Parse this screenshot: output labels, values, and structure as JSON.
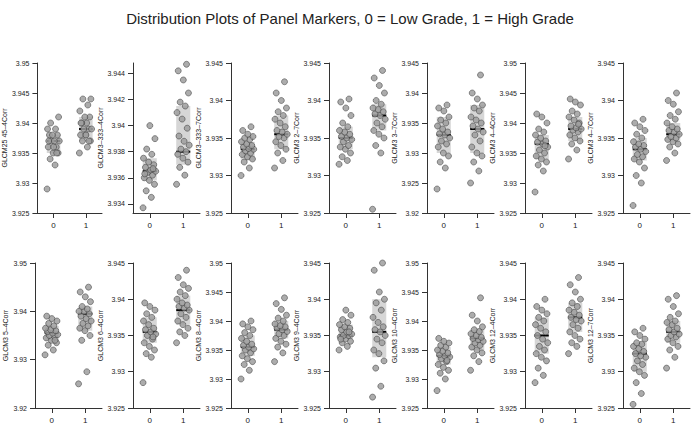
{
  "title": "Distribution Plots of Panel Markers, 0 = Low Grade, 1 = High Grade",
  "chart_data": [
    {
      "type": "strip",
      "y_label": "GLCM25 45–4Corr",
      "categories": [
        "0",
        "1"
      ],
      "color": "#9e9e9e",
      "ylim": [
        3.925,
        3.95
      ],
      "yticks": [
        3.925,
        3.93,
        3.935,
        3.94,
        3.945,
        3.95
      ],
      "median": [
        3.937,
        3.939
      ],
      "iqr": [
        [
          3.935,
          3.938
        ],
        [
          3.937,
          3.941
        ]
      ],
      "values": [
        [
          3.929,
          3.933,
          3.934,
          3.935,
          3.935,
          3.936,
          3.936,
          3.937,
          3.937,
          3.937,
          3.938,
          3.938,
          3.938,
          3.939,
          3.939,
          3.94,
          3.941,
          3.936,
          3.937,
          3.935
        ],
        [
          3.935,
          3.936,
          3.937,
          3.937,
          3.938,
          3.938,
          3.939,
          3.939,
          3.939,
          3.94,
          3.94,
          3.941,
          3.941,
          3.942,
          3.943,
          3.944,
          3.944,
          3.938,
          3.94,
          3.937
        ]
      ]
    },
    {
      "type": "strip",
      "y_label": "GLCM3–333–4Corr",
      "categories": [
        "0",
        "1"
      ],
      "color": "#9e9e9e",
      "ylim": [
        3.9333,
        3.9448
      ],
      "yticks": [
        3.934,
        3.936,
        3.938,
        3.94,
        3.942,
        3.944
      ],
      "median": [
        3.9365,
        3.938
      ],
      "iqr": [
        [
          3.9358,
          3.9375
        ],
        [
          3.937,
          3.9415
        ]
      ],
      "values": [
        [
          3.9337,
          3.9345,
          3.935,
          3.9355,
          3.9358,
          3.936,
          3.9362,
          3.9364,
          3.9365,
          3.9366,
          3.9368,
          3.937,
          3.9372,
          3.9375,
          3.9378,
          3.9382,
          3.939,
          3.94,
          3.9363,
          3.9367
        ],
        [
          3.9355,
          3.9362,
          3.9368,
          3.9372,
          3.9375,
          3.9378,
          3.938,
          3.9382,
          3.9385,
          3.9388,
          3.9392,
          3.9398,
          3.9405,
          3.941,
          3.9415,
          3.9418,
          3.9425,
          3.9435,
          3.9442,
          3.9447
        ]
      ]
    },
    {
      "type": "strip",
      "y_label": "GLCM3–333–7Corr",
      "categories": [
        "0",
        "1"
      ],
      "color": "#9e9e9e",
      "ylim": [
        3.925,
        3.945
      ],
      "yticks": [
        3.925,
        3.93,
        3.935,
        3.94,
        3.945
      ],
      "median": [
        3.9335,
        3.9355
      ],
      "iqr": [
        [
          3.932,
          3.9345
        ],
        [
          3.9335,
          3.938
        ]
      ],
      "values": [
        [
          3.93,
          3.931,
          3.9318,
          3.9322,
          3.9325,
          3.9328,
          3.933,
          3.9333,
          3.9335,
          3.9336,
          3.9338,
          3.934,
          3.9342,
          3.9345,
          3.9348,
          3.935,
          3.9352,
          3.9355,
          3.936,
          3.9365
        ],
        [
          3.931,
          3.932,
          3.933,
          3.9335,
          3.934,
          3.9345,
          3.935,
          3.9352,
          3.9355,
          3.9358,
          3.936,
          3.9365,
          3.937,
          3.9375,
          3.938,
          3.9385,
          3.939,
          3.94,
          3.941,
          3.9425
        ]
      ]
    },
    {
      "type": "strip",
      "y_label": "GLCM3 2–7Corr",
      "categories": [
        "0",
        "1"
      ],
      "color": "#9e9e9e",
      "ylim": [
        3.925,
        3.945
      ],
      "yticks": [
        3.925,
        3.93,
        3.935,
        3.94,
        3.945
      ],
      "median": [
        3.935,
        3.938
      ],
      "iqr": [
        [
          3.9335,
          3.9365
        ],
        [
          3.936,
          3.9395
        ]
      ],
      "values": [
        [
          3.9315,
          3.932,
          3.9325,
          3.933,
          3.9335,
          3.9338,
          3.934,
          3.9345,
          3.9348,
          3.935,
          3.9352,
          3.9355,
          3.9358,
          3.936,
          3.9365,
          3.937,
          3.938,
          3.939,
          3.9398,
          3.9402
        ],
        [
          3.9255,
          3.933,
          3.934,
          3.935,
          3.9355,
          3.936,
          3.9365,
          3.937,
          3.9375,
          3.938,
          3.9382,
          3.9385,
          3.9388,
          3.939,
          3.9395,
          3.94,
          3.941,
          3.942,
          3.943,
          3.944
        ]
      ]
    },
    {
      "type": "strip",
      "y_label": "GLCM3 3–7Corr",
      "categories": [
        "0",
        "1"
      ],
      "color": "#9e9e9e",
      "ylim": [
        3.92,
        3.945
      ],
      "yticks": [
        3.92,
        3.925,
        3.93,
        3.935,
        3.94,
        3.945
      ],
      "median": [
        3.933,
        3.934
      ],
      "iqr": [
        [
          3.93,
          3.936
        ],
        [
          3.93,
          3.938
        ]
      ],
      "values": [
        [
          3.924,
          3.9275,
          3.9285,
          3.9295,
          3.93,
          3.931,
          3.9315,
          3.932,
          3.9325,
          3.933,
          3.9332,
          3.9335,
          3.934,
          3.9345,
          3.935,
          3.9355,
          3.936,
          3.937,
          3.9375,
          3.938
        ],
        [
          3.925,
          3.927,
          3.9285,
          3.9295,
          3.93,
          3.931,
          3.932,
          3.933,
          3.9335,
          3.934,
          3.9345,
          3.935,
          3.9355,
          3.936,
          3.937,
          3.9375,
          3.938,
          3.939,
          3.94,
          3.943
        ]
      ]
    },
    {
      "type": "strip",
      "y_label": "GLCM3 4–4Corr",
      "categories": [
        "0",
        "1"
      ],
      "color": "#9e9e9e",
      "ylim": [
        3.925,
        3.95
      ],
      "yticks": [
        3.925,
        3.93,
        3.935,
        3.94,
        3.945,
        3.95
      ],
      "median": [
        3.9365,
        3.939
      ],
      "iqr": [
        [
          3.934,
          3.938
        ],
        [
          3.937,
          3.941
        ]
      ],
      "values": [
        [
          3.9285,
          3.932,
          3.933,
          3.9335,
          3.934,
          3.9345,
          3.935,
          3.9355,
          3.936,
          3.9365,
          3.9368,
          3.937,
          3.9375,
          3.938,
          3.9385,
          3.939,
          3.94,
          3.941,
          3.9415,
          3.9362
        ],
        [
          3.934,
          3.9355,
          3.9365,
          3.937,
          3.9375,
          3.938,
          3.9385,
          3.9388,
          3.939,
          3.9392,
          3.9395,
          3.94,
          3.9405,
          3.941,
          3.9415,
          3.942,
          3.943,
          3.9435,
          3.944,
          3.9398
        ]
      ]
    },
    {
      "type": "strip",
      "y_label": "GLCM3 4–7Corr",
      "categories": [
        "0",
        "1"
      ],
      "color": "#9e9e9e",
      "ylim": [
        3.925,
        3.945
      ],
      "yticks": [
        3.925,
        3.93,
        3.935,
        3.94,
        3.945
      ],
      "median": [
        3.9335,
        3.9355
      ],
      "iqr": [
        [
          3.932,
          3.935
        ],
        [
          3.9345,
          3.937
        ]
      ],
      "values": [
        [
          3.926,
          3.929,
          3.93,
          3.931,
          3.9318,
          3.9322,
          3.9325,
          3.9328,
          3.9332,
          3.9335,
          3.9338,
          3.934,
          3.9342,
          3.9345,
          3.935,
          3.9355,
          3.936,
          3.9365,
          3.937,
          3.9375
        ],
        [
          3.932,
          3.933,
          3.9338,
          3.9342,
          3.9345,
          3.9348,
          3.935,
          3.9352,
          3.9355,
          3.9358,
          3.936,
          3.9362,
          3.9365,
          3.937,
          3.9375,
          3.938,
          3.9385,
          3.9395,
          3.94,
          3.941
        ]
      ]
    },
    {
      "type": "strip",
      "y_label": "GLCM3 5–4Corr",
      "categories": [
        "0",
        "1"
      ],
      "color": "#9e9e9e",
      "ylim": [
        3.92,
        3.95
      ],
      "yticks": [
        3.92,
        3.93,
        3.94,
        3.95
      ],
      "median": [
        3.9355,
        3.9395
      ],
      "iqr": [
        [
          3.934,
          3.937
        ],
        [
          3.936,
          3.941
        ]
      ],
      "values": [
        [
          3.931,
          3.932,
          3.933,
          3.9335,
          3.934,
          3.9345,
          3.9348,
          3.935,
          3.9352,
          3.9355,
          3.9358,
          3.936,
          3.9362,
          3.9365,
          3.937,
          3.9375,
          3.938,
          3.9385,
          3.939,
          3.934
        ],
        [
          3.925,
          3.9275,
          3.934,
          3.935,
          3.936,
          3.9365,
          3.937,
          3.9375,
          3.938,
          3.9385,
          3.939,
          3.9395,
          3.94,
          3.94,
          3.9405,
          3.941,
          3.942,
          3.943,
          3.944,
          3.945
        ]
      ]
    },
    {
      "type": "strip",
      "y_label": "GLCM3 6–4Corr",
      "categories": [
        "0",
        "1"
      ],
      "color": "#9e9e9e",
      "ylim": [
        3.925,
        3.945
      ],
      "yticks": [
        3.925,
        3.93,
        3.935,
        3.94,
        3.945
      ],
      "median": [
        3.9355,
        3.9385
      ],
      "iqr": [
        [
          3.934,
          3.9375
        ],
        [
          3.9365,
          3.9405
        ]
      ],
      "values": [
        [
          3.9285,
          3.932,
          3.9325,
          3.933,
          3.9335,
          3.934,
          3.9345,
          3.935,
          3.9352,
          3.9355,
          3.9358,
          3.936,
          3.9365,
          3.937,
          3.9375,
          3.938,
          3.9385,
          3.939,
          3.9395,
          3.9348
        ],
        [
          3.934,
          3.935,
          3.9355,
          3.936,
          3.9365,
          3.937,
          3.9375,
          3.938,
          3.9385,
          3.9388,
          3.939,
          3.9392,
          3.9395,
          3.94,
          3.9405,
          3.941,
          3.9415,
          3.942,
          3.943,
          3.944
        ]
      ]
    },
    {
      "type": "strip",
      "y_label": "GLCM3 8–4Corr",
      "categories": [
        "0",
        "1"
      ],
      "color": "#9e9e9e",
      "ylim": [
        3.925,
        3.95
      ],
      "yticks": [
        3.925,
        3.93,
        3.935,
        3.94,
        3.945,
        3.95
      ],
      "median": [
        3.9355,
        3.9385
      ],
      "iqr": [
        [
          3.934,
          3.9375
        ],
        [
          3.937,
          3.94
        ]
      ],
      "values": [
        [
          3.93,
          3.9315,
          3.9325,
          3.933,
          3.9335,
          3.934,
          3.9345,
          3.935,
          3.9352,
          3.9355,
          3.9358,
          3.936,
          3.9365,
          3.937,
          3.9375,
          3.938,
          3.9385,
          3.939,
          3.9395,
          3.94
        ],
        [
          3.933,
          3.9345,
          3.9355,
          3.936,
          3.9365,
          3.937,
          3.9375,
          3.9378,
          3.9382,
          3.9385,
          3.9388,
          3.939,
          3.9392,
          3.9395,
          3.94,
          3.9405,
          3.941,
          3.942,
          3.943,
          3.944
        ]
      ]
    },
    {
      "type": "strip",
      "y_label": "GLCM3 9–4Corr",
      "categories": [
        "0",
        "1"
      ],
      "color": "#9e9e9e",
      "ylim": [
        3.925,
        3.945
      ],
      "yticks": [
        3.925,
        3.93,
        3.935,
        3.94,
        3.945
      ],
      "median": [
        3.935,
        3.9355
      ],
      "iqr": [
        [
          3.9345,
          3.9365
        ],
        [
          3.932,
          3.94
        ]
      ],
      "values": [
        [
          3.933,
          3.9335,
          3.934,
          3.9342,
          3.9345,
          3.9348,
          3.935,
          3.935,
          3.9352,
          3.9355,
          3.9358,
          3.936,
          3.9362,
          3.9365,
          3.9368,
          3.9372,
          3.9378,
          3.9385,
          3.9345,
          3.9355
        ],
        [
          3.9265,
          3.928,
          3.9305,
          3.9315,
          3.9325,
          3.933,
          3.934,
          3.9345,
          3.935,
          3.9355,
          3.9358,
          3.9362,
          3.9368,
          3.9375,
          3.9385,
          3.9395,
          3.94,
          3.941,
          3.944,
          3.945
        ]
      ]
    },
    {
      "type": "strip",
      "y_label": "GLCM3 10–4Corr",
      "categories": [
        "0",
        "1"
      ],
      "color": "#9e9e9e",
      "ylim": [
        3.925,
        3.95
      ],
      "yticks": [
        3.925,
        3.93,
        3.935,
        3.94,
        3.945,
        3.95
      ],
      "median": [
        3.934,
        3.937
      ],
      "iqr": [
        [
          3.9325,
          3.9355
        ],
        [
          3.935,
          3.9385
        ]
      ],
      "values": [
        [
          3.928,
          3.93,
          3.931,
          3.9315,
          3.932,
          3.9325,
          3.933,
          3.9335,
          3.9338,
          3.934,
          3.9342,
          3.9345,
          3.9348,
          3.935,
          3.9355,
          3.9358,
          3.9362,
          3.9365,
          3.937,
          3.9332
        ],
        [
          3.9315,
          3.933,
          3.934,
          3.9345,
          3.935,
          3.9355,
          3.9358,
          3.9362,
          3.9365,
          3.9368,
          3.937,
          3.9372,
          3.9375,
          3.9378,
          3.9382,
          3.9385,
          3.939,
          3.94,
          3.941,
          3.944
        ]
      ]
    },
    {
      "type": "strip",
      "y_label": "GLCM3 12–4Corr",
      "categories": [
        "0",
        "1"
      ],
      "color": "#9e9e9e",
      "ylim": [
        3.925,
        3.945
      ],
      "yticks": [
        3.925,
        3.93,
        3.935,
        3.94,
        3.945
      ],
      "median": [
        3.935,
        3.9375
      ],
      "iqr": [
        [
          3.9325,
          3.9375
        ],
        [
          3.9355,
          3.9395
        ]
      ],
      "values": [
        [
          3.9285,
          3.9295,
          3.9305,
          3.9315,
          3.932,
          3.9325,
          3.933,
          3.9335,
          3.934,
          3.9345,
          3.935,
          3.9355,
          3.936,
          3.9365,
          3.937,
          3.9375,
          3.938,
          3.9385,
          3.939,
          3.94
        ],
        [
          3.9325,
          3.9335,
          3.934,
          3.9345,
          3.935,
          3.9355,
          3.936,
          3.9365,
          3.937,
          3.9372,
          3.9375,
          3.9378,
          3.9382,
          3.9385,
          3.939,
          3.9395,
          3.94,
          3.941,
          3.942,
          3.943
        ]
      ]
    },
    {
      "type": "strip",
      "y_label": "GLCM3 12–7Corr",
      "categories": [
        "0",
        "1"
      ],
      "color": "#9e9e9e",
      "ylim": [
        3.925,
        3.945
      ],
      "yticks": [
        3.925,
        3.93,
        3.935,
        3.94,
        3.945
      ],
      "median": [
        3.9325,
        3.9355
      ],
      "iqr": [
        [
          3.93,
          3.934
        ],
        [
          3.934,
          3.937
        ]
      ],
      "values": [
        [
          3.9255,
          3.927,
          3.9285,
          3.9295,
          3.93,
          3.9305,
          3.931,
          3.9315,
          3.932,
          3.9322,
          3.9325,
          3.9328,
          3.9332,
          3.9335,
          3.9338,
          3.934,
          3.9345,
          3.935,
          3.9355,
          3.936
        ],
        [
          3.9305,
          3.932,
          3.933,
          3.9335,
          3.934,
          3.9345,
          3.9348,
          3.935,
          3.9352,
          3.9355,
          3.9358,
          3.936,
          3.9365,
          3.9368,
          3.937,
          3.9375,
          3.938,
          3.939,
          3.94,
          3.9405
        ]
      ]
    }
  ]
}
